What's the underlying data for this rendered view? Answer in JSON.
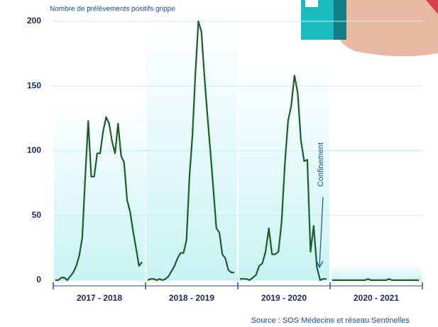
{
  "chart_data": {
    "type": "line",
    "y_label": "Nombre de prélévements positifs grippe",
    "source": "Source : SOS Médecins et réseau Sentinelles",
    "annotation": "Confinement",
    "ylim": [
      0,
      200
    ],
    "yticks": [
      0,
      50,
      100,
      150,
      200
    ],
    "grid": true,
    "series": [
      {
        "name": "2017 - 2018",
        "color": "#1b5e2b",
        "values": [
          0,
          0,
          2,
          2,
          0,
          3,
          6,
          11,
          19,
          33,
          80,
          123,
          80,
          80,
          98,
          98,
          115,
          126,
          121,
          107,
          98,
          121,
          96,
          91,
          62,
          53,
          38,
          25,
          11,
          14
        ]
      },
      {
        "name": "2018 - 2019",
        "color": "#1b5e2b",
        "values": [
          0,
          1,
          1,
          0,
          1,
          0,
          1,
          3,
          7,
          11,
          17,
          21,
          21,
          31,
          80,
          112,
          160,
          200,
          192,
          158,
          128,
          100,
          70,
          40,
          37,
          20,
          17,
          8,
          6,
          6
        ]
      },
      {
        "name": "2019 - 2020",
        "color": "#1b5e2b",
        "values": [
          1,
          1,
          1,
          0,
          2,
          4,
          11,
          13,
          22,
          40,
          20,
          20,
          22,
          45,
          90,
          123,
          135,
          158,
          145,
          108,
          92,
          93,
          22,
          42,
          10,
          0,
          1,
          1
        ]
      },
      {
        "name": "2020 - 2021",
        "color": "#1b5e2b",
        "values": [
          0,
          0,
          0,
          0,
          0,
          0,
          0,
          0,
          0,
          0,
          0,
          0,
          1,
          0,
          0,
          0,
          0,
          0,
          0,
          1,
          0,
          0,
          0,
          0,
          0,
          0,
          0,
          0,
          0,
          0
        ]
      }
    ]
  }
}
